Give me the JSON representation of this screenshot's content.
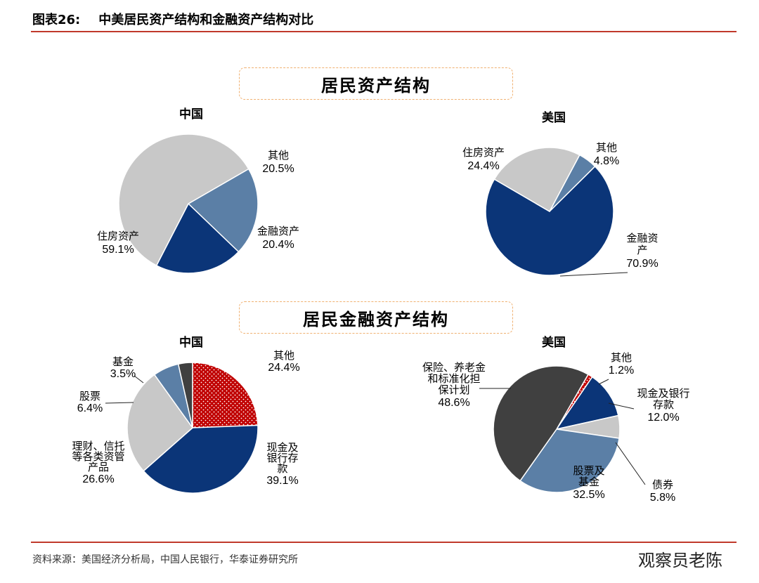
{
  "header": {
    "figure_label": "图表26:",
    "title": "中美居民资产结构和金融资产结构对比"
  },
  "sections": [
    {
      "title": "居民资产结构"
    },
    {
      "title": "居民金融资产结构"
    }
  ],
  "chart_data": [
    {
      "type": "pie",
      "title": "中国",
      "slices": [
        {
          "name": "其他",
          "value": 20.5,
          "label": "20.5%",
          "color": "#5b7fa6"
        },
        {
          "name": "金融资产",
          "value": 20.4,
          "label": "20.4%",
          "color": "#0b3578"
        },
        {
          "name": "住房资产",
          "value": 59.1,
          "label": "59.1%",
          "color": "#c8c8c8"
        }
      ]
    },
    {
      "type": "pie",
      "title": "美国",
      "slices": [
        {
          "name": "其他",
          "value": 4.8,
          "label": "4.8%",
          "color": "#5b7fa6"
        },
        {
          "name": "金融资产",
          "value": 70.9,
          "label": "70.9%",
          "color": "#0b3578"
        },
        {
          "name": "住房资产",
          "value": 24.4,
          "label": "24.4%",
          "color": "#c8c8c8"
        }
      ]
    },
    {
      "type": "pie",
      "title": "中国",
      "slices": [
        {
          "name": "其他",
          "value": 24.4,
          "label": "24.4%",
          "color": "#c00000",
          "pattern": "dots"
        },
        {
          "name": "现金及银行存款",
          "value": 39.1,
          "label": "39.1%",
          "color": "#0b3578"
        },
        {
          "name": "理财、信托等各类资管产品",
          "value": 26.6,
          "label": "26.6%",
          "color": "#c8c8c8"
        },
        {
          "name": "股票",
          "value": 6.4,
          "label": "6.4%",
          "color": "#5b7fa6"
        },
        {
          "name": "基金",
          "value": 3.5,
          "label": "3.5%",
          "color": "#404040"
        }
      ]
    },
    {
      "type": "pie",
      "title": "美国",
      "slices": [
        {
          "name": "其他",
          "value": 1.2,
          "label": "1.2%",
          "color": "#c00000",
          "pattern": "dots"
        },
        {
          "name": "现金及银行存款",
          "value": 12.0,
          "label": "12.0%",
          "color": "#0b3578"
        },
        {
          "name": "债券",
          "value": 5.8,
          "label": "5.8%",
          "color": "#c8c8c8"
        },
        {
          "name": "股票及基金",
          "value": 32.5,
          "label": "32.5%",
          "color": "#5b7fa6"
        },
        {
          "name": "保险、养老金和标准化担保计划",
          "value": 48.6,
          "label": "48.6%",
          "color": "#404040"
        }
      ]
    }
  ],
  "footer": {
    "source": "资料来源：美国经济分析局，中国人民银行，华泰证券研究所",
    "watermark": "观察员老陈"
  }
}
